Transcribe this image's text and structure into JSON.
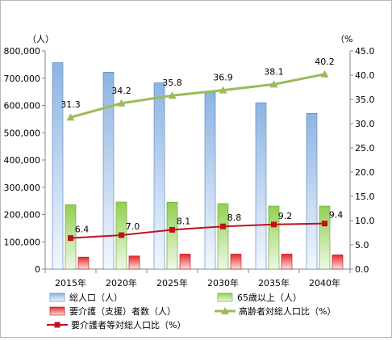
{
  "chart_data": {
    "type": "bar",
    "categories": [
      "2015年",
      "2020年",
      "2025年",
      "2030年",
      "2035年",
      "2040年"
    ],
    "left_axis": {
      "unit": "（人）",
      "range": [
        0,
        800000
      ],
      "ticks": [
        "0",
        "100,000",
        "200,000",
        "300,000",
        "400,000",
        "500,000",
        "600,000",
        "700,000",
        "800,000"
      ]
    },
    "right_axis": {
      "unit": "（%",
      "range": [
        0,
        45
      ],
      "ticks": [
        "0.0",
        "5.0",
        "10.0",
        "15.0",
        "20.0",
        "25.0",
        "30.0",
        "35.0",
        "40.0",
        "45.0"
      ]
    },
    "series": [
      {
        "name": "総人口（人）",
        "type": "bar",
        "axis": "left",
        "color": "#8eb4e3",
        "values": [
          757000,
          722000,
          683000,
          648000,
          610000,
          571000
        ]
      },
      {
        "name": "65歳以上（人）",
        "type": "bar",
        "axis": "left",
        "color": "#92d050",
        "values": [
          236000,
          246000,
          245000,
          240000,
          231000,
          231000
        ]
      },
      {
        "name": "要介護（支援）者数（人）",
        "type": "bar",
        "axis": "left",
        "color": "#e8282b",
        "values": [
          44000,
          48000,
          55000,
          55000,
          55000,
          52000
        ]
      },
      {
        "name": "高齢者対総人口比（%）",
        "type": "line",
        "axis": "right",
        "color": "#9bbb59",
        "marker": "triangle",
        "values": [
          31.3,
          34.2,
          35.8,
          36.9,
          38.1,
          40.2
        ],
        "labels": [
          "31.3",
          "34.2",
          "35.8",
          "36.9",
          "38.1",
          "40.2"
        ]
      },
      {
        "name": "要介護者等対総人口比（%）",
        "type": "line",
        "axis": "right",
        "color": "#c0121c",
        "marker": "square",
        "values": [
          6.4,
          7.0,
          8.1,
          8.8,
          9.2,
          9.4
        ],
        "labels": [
          "6.4",
          "7.0",
          "8.1",
          "8.8",
          "9.2",
          "9.4"
        ]
      }
    ],
    "grid": false,
    "legend": "bottom"
  }
}
